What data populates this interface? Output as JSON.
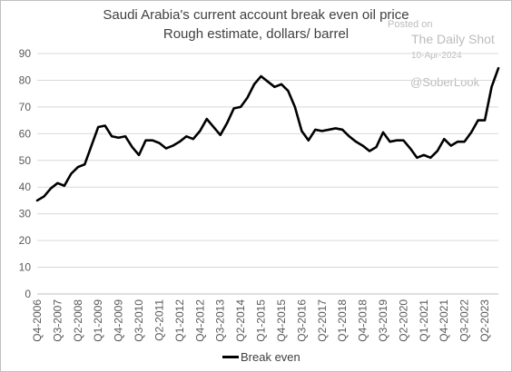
{
  "chart_data": {
    "type": "line",
    "title": "Saudi Arabia's current account break even oil price",
    "subtitle": "Rough estimate, dollars/ barrel",
    "ylim": [
      0,
      90
    ],
    "yticks": [
      0,
      10,
      20,
      30,
      40,
      50,
      60,
      70,
      80,
      90
    ],
    "grid": true,
    "legend_position": "bottom",
    "x_tick_labels": [
      "Q4-2006",
      "Q3-2007",
      "Q2-2008",
      "Q1-2009",
      "Q4-2009",
      "Q3-2010",
      "Q2-2011",
      "Q1-2012",
      "Q4-2012",
      "Q3-2013",
      "Q2-2014",
      "Q1-2015",
      "Q4-2015",
      "Q3-2016",
      "Q2-2017",
      "Q1-2018",
      "Q4-2018",
      "Q3-2019",
      "Q2-2020",
      "Q1-2021",
      "Q4-2021",
      "Q3-2022",
      "Q2-2023"
    ],
    "series": [
      {
        "name": "Break even",
        "color": "#000000",
        "values": [
          35,
          36.5,
          39.5,
          41.5,
          40.5,
          45,
          47.5,
          48.5,
          55.5,
          62.5,
          63,
          59,
          58.5,
          59,
          55,
          52,
          57.5,
          57.5,
          56.5,
          54.5,
          55.5,
          57,
          59,
          58,
          61,
          65.5,
          62.5,
          59.5,
          64,
          69.5,
          70,
          73.5,
          78.5,
          81.5,
          79.5,
          77.5,
          78.5,
          76,
          70,
          61,
          57.5,
          61.5,
          61,
          61.5,
          62,
          61.5,
          59,
          57,
          55.5,
          53.5,
          55,
          60.5,
          57,
          57.5,
          57.5,
          54.5,
          51,
          52,
          51,
          53.5,
          58,
          55.5,
          57,
          57,
          60.5,
          65,
          65,
          77.5,
          84.5
        ]
      }
    ]
  },
  "watermark": {
    "line1": "Posted on",
    "line2": "The Daily Shot",
    "line3": "10-Apr-2024",
    "line4": "@SoberLook"
  }
}
